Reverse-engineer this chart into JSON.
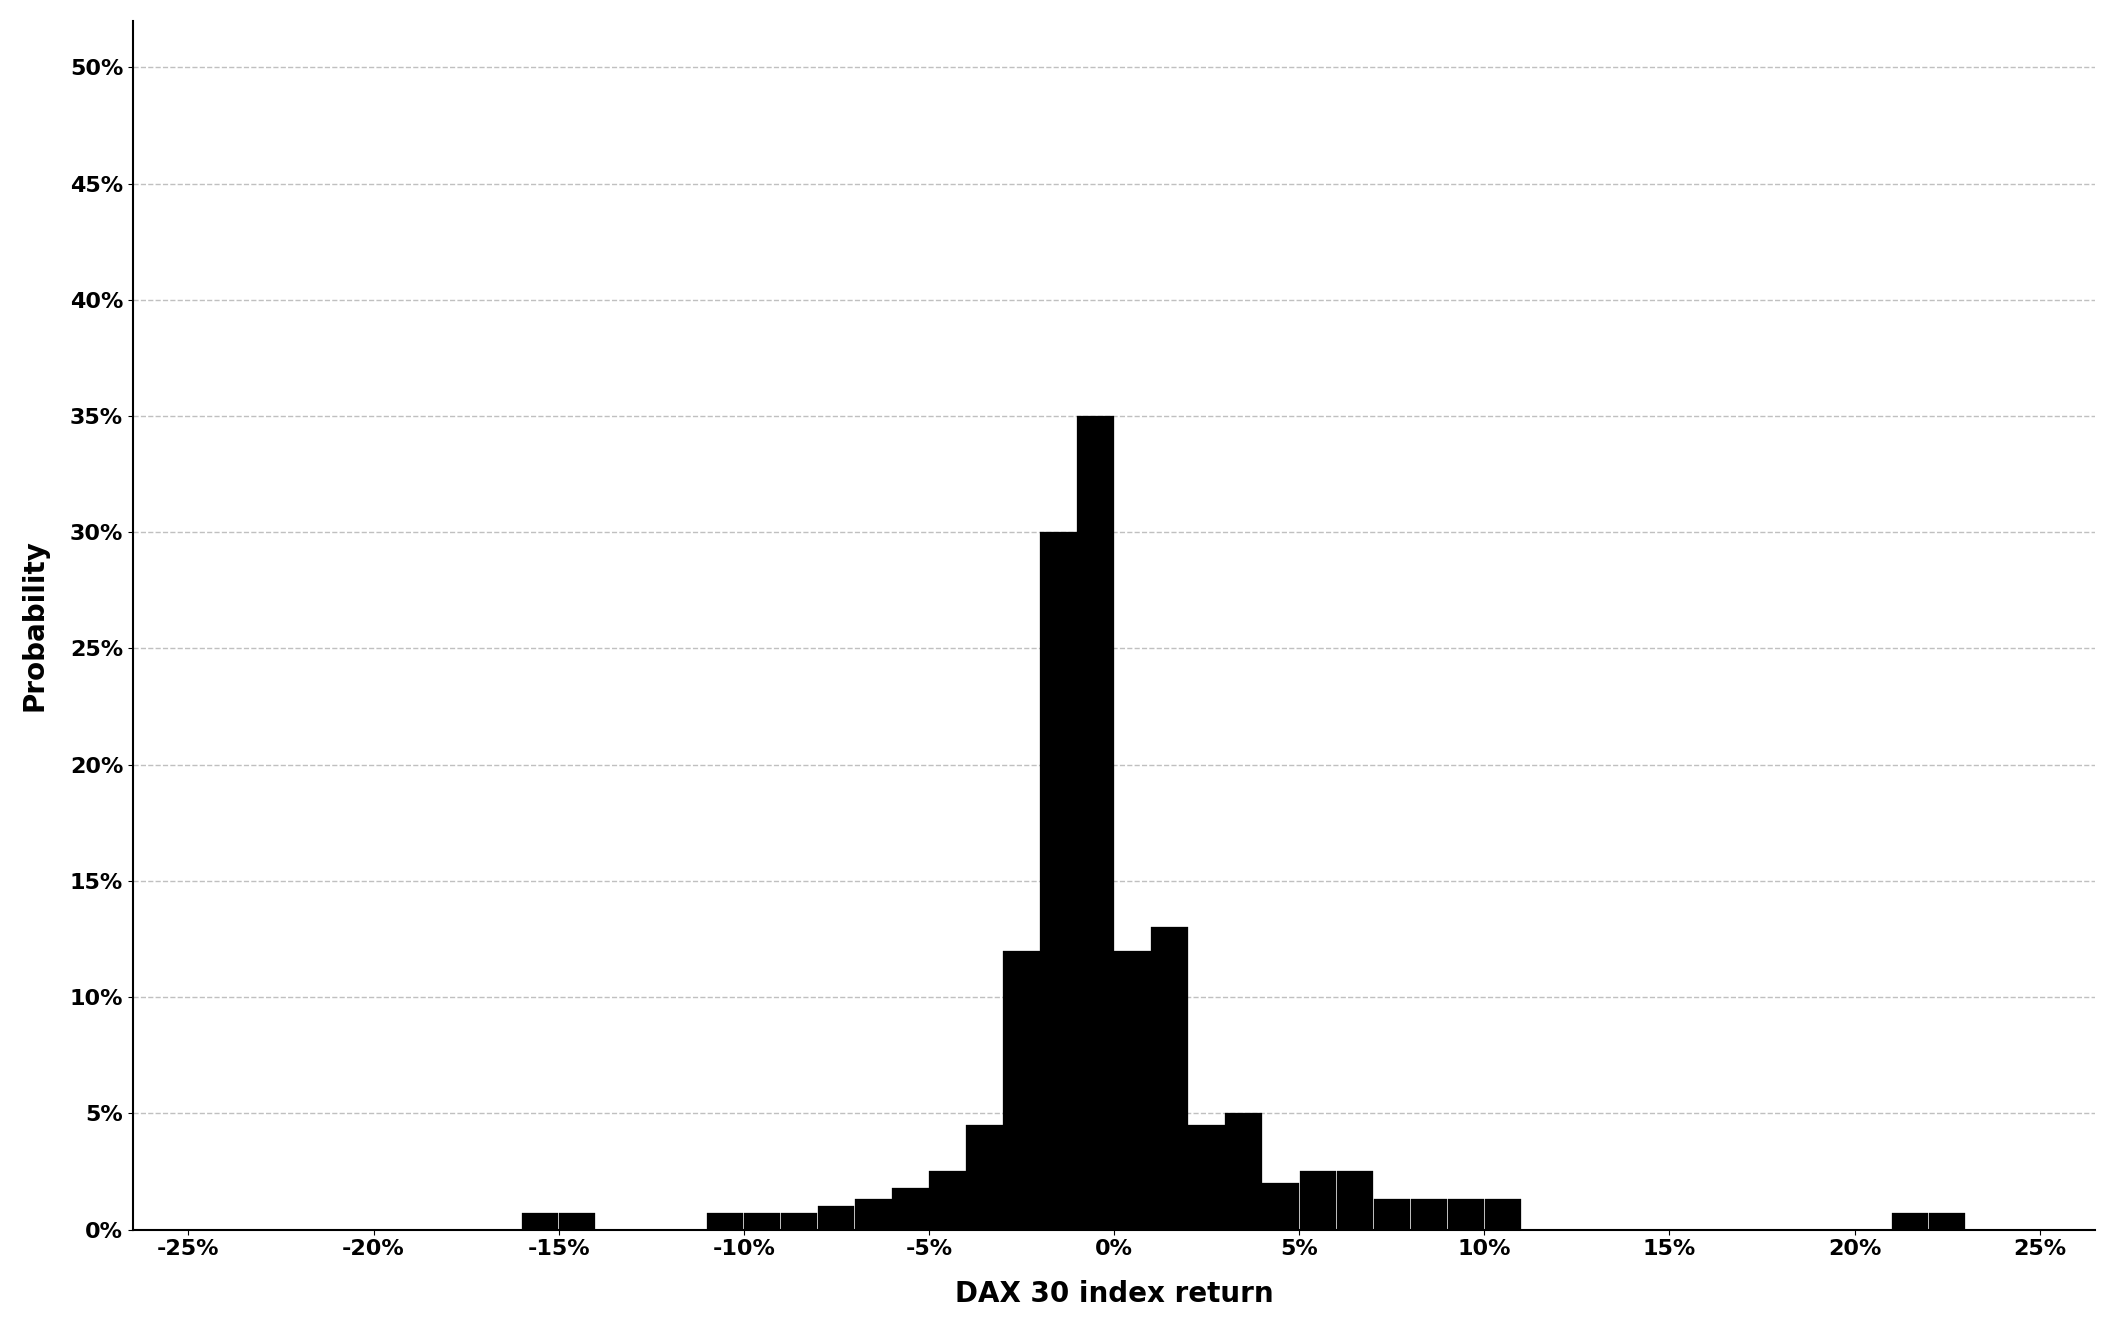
{
  "xlabel": "DAX 30 index return",
  "ylabel": "Probability",
  "bar_color": "#000000",
  "background_color": "#ffffff",
  "xlim": [
    -0.265,
    0.265
  ],
  "ylim": [
    0.0,
    0.52
  ],
  "yticks": [
    0.0,
    0.05,
    0.1,
    0.15,
    0.2,
    0.25,
    0.3,
    0.35,
    0.4,
    0.45,
    0.5
  ],
  "xticks": [
    -0.25,
    -0.2,
    -0.15,
    -0.1,
    -0.05,
    0.0,
    0.05,
    0.1,
    0.15,
    0.2,
    0.25
  ],
  "bin_centers": [
    -0.245,
    -0.235,
    -0.225,
    -0.215,
    -0.205,
    -0.195,
    -0.185,
    -0.175,
    -0.165,
    -0.155,
    -0.145,
    -0.135,
    -0.125,
    -0.115,
    -0.105,
    -0.095,
    -0.085,
    -0.075,
    -0.065,
    -0.055,
    -0.045,
    -0.035,
    -0.025,
    -0.015,
    -0.005,
    0.005,
    0.015,
    0.025,
    0.035,
    0.045,
    0.055,
    0.065,
    0.075,
    0.085,
    0.095,
    0.105,
    0.115,
    0.125,
    0.135,
    0.145,
    0.155,
    0.165,
    0.175,
    0.185,
    0.195,
    0.205,
    0.215,
    0.225,
    0.235,
    0.245
  ],
  "bar_heights": [
    0.0,
    0.0,
    0.0,
    0.0,
    0.0,
    0.0,
    0.0,
    0.0,
    0.0,
    0.007,
    0.007,
    0.0,
    0.0,
    0.0,
    0.007,
    0.007,
    0.007,
    0.01,
    0.013,
    0.018,
    0.025,
    0.045,
    0.12,
    0.3,
    0.35,
    0.12,
    0.13,
    0.045,
    0.05,
    0.02,
    0.025,
    0.025,
    0.013,
    0.013,
    0.013,
    0.013,
    0.0,
    0.0,
    0.0,
    0.0,
    0.0,
    0.0,
    0.0,
    0.0,
    0.0,
    0.0,
    0.007,
    0.007,
    0.0,
    0.0
  ],
  "bar_width": 0.0098,
  "grid_color": "#c0c0c0",
  "grid_linestyle": "--",
  "grid_linewidth": 1.0,
  "xlabel_fontsize": 20,
  "ylabel_fontsize": 20,
  "tick_fontsize": 16,
  "tick_fontweight": "bold"
}
